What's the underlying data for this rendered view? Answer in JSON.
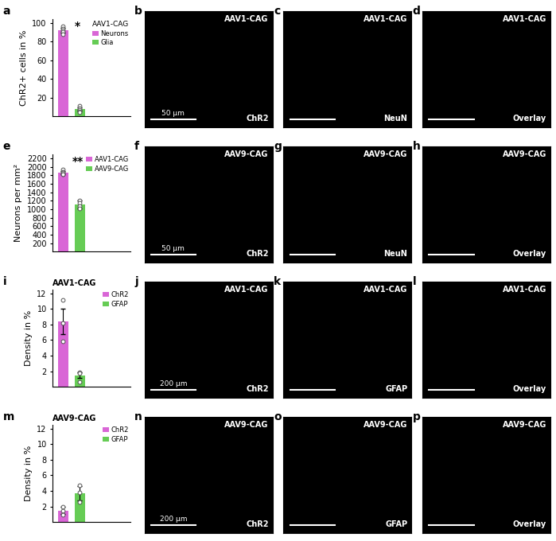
{
  "chart_data": [
    {
      "type": "bar",
      "panel": "a",
      "y_label": "ChR2+ cells in %",
      "annotation": "*",
      "legend_title": "AAV1-CAG",
      "categories": [
        "Neurons",
        "Glia"
      ],
      "values": [
        92,
        8
      ],
      "errors": [
        2.5,
        1.5
      ],
      "points": [
        [
          96,
          94,
          92,
          90,
          88
        ],
        [
          11,
          9,
          7,
          5,
          4
        ]
      ],
      "colors": [
        "#d966d6",
        "#66cc55"
      ],
      "ylim": [
        0,
        104
      ],
      "yticks": [
        20,
        40,
        60,
        80,
        100
      ],
      "legend": "upper right",
      "tick_labels": "y"
    },
    {
      "type": "bar",
      "panel": "e",
      "y_label": "Neurons per mm²",
      "annotation": "**",
      "categories": [
        "AAV1-CAG",
        "AAV9-CAG"
      ],
      "values": [
        1870,
        1110
      ],
      "errors": [
        40,
        90
      ],
      "points": [
        [
          1930,
          1890,
          1860,
          1830,
          1820
        ],
        [
          1200,
          1150,
          1080,
          1020
        ]
      ],
      "colors": [
        "#d966d6",
        "#66cc55"
      ],
      "ylim": [
        0,
        2300
      ],
      "yticks": [
        200,
        400,
        600,
        800,
        1000,
        1200,
        1400,
        1600,
        1800,
        2000,
        2200
      ],
      "legend": "upper right",
      "tick_labels": "y"
    },
    {
      "type": "bar",
      "panel": "i",
      "y_label": "Density in %",
      "text": "AAV1-CAG",
      "categories": [
        "ChR2",
        "GFAP"
      ],
      "values": [
        8.4,
        1.5
      ],
      "errors": [
        1.6,
        0.4
      ],
      "points": [
        [
          11.2,
          8.2,
          5.8
        ],
        [
          1.9,
          1.8,
          0.6
        ]
      ],
      "colors": [
        "#d966d6",
        "#66cc55"
      ],
      "ylim": [
        0,
        12.5
      ],
      "yticks": [
        2,
        4,
        6,
        8,
        10,
        12
      ],
      "legend": "upper right",
      "tick_labels": "y"
    },
    {
      "type": "bar",
      "panel": "m",
      "y_label": "Density in %",
      "text": "AAV9-CAG",
      "categories": [
        "ChR2",
        "GFAP"
      ],
      "values": [
        1.5,
        3.7
      ],
      "errors": [
        0.5,
        0.9
      ],
      "points": [
        [
          2.0,
          1.5,
          0.9
        ],
        [
          4.7,
          3.8,
          2.6
        ]
      ],
      "colors": [
        "#d966d6",
        "#66cc55"
      ],
      "ylim": [
        0,
        12.5
      ],
      "yticks": [
        2,
        4,
        6,
        8,
        10,
        12
      ],
      "legend": "upper right",
      "tick_labels": "y"
    }
  ],
  "image_panels": [
    {
      "panel": "b",
      "virus": "AAV1-CAG",
      "channel": "ChR2",
      "scale_bar": "50 µm"
    },
    {
      "panel": "c",
      "virus": "AAV1-CAG",
      "channel": "NeuN"
    },
    {
      "panel": "d",
      "virus": "AAV1-CAG",
      "channel": "Overlay"
    },
    {
      "panel": "f",
      "virus": "AAV9-CAG",
      "channel": "ChR2",
      "scale_bar": "50 µm"
    },
    {
      "panel": "g",
      "virus": "AAV9-CAG",
      "channel": "NeuN"
    },
    {
      "panel": "h",
      "virus": "AAV9-CAG",
      "channel": "Overlay"
    },
    {
      "panel": "j",
      "virus": "AAV1-CAG",
      "channel": "ChR2",
      "scale_bar": "200 µm"
    },
    {
      "panel": "k",
      "virus": "AAV1-CAG",
      "channel": "GFAP"
    },
    {
      "panel": "l",
      "virus": "AAV1-CAG",
      "channel": "Overlay"
    },
    {
      "panel": "n",
      "virus": "AAV9-CAG",
      "channel": "ChR2",
      "scale_bar": "200 µm"
    },
    {
      "panel": "o",
      "virus": "AAV9-CAG",
      "channel": "GFAP"
    },
    {
      "panel": "p",
      "virus": "AAV9-CAG",
      "channel": "Overlay"
    }
  ]
}
